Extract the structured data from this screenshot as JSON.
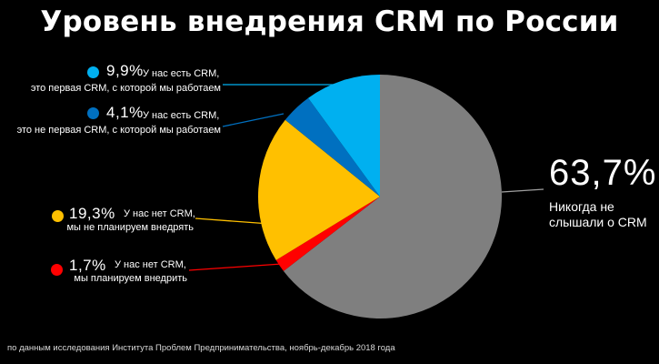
{
  "title": "Уровень внедрения CRM по России",
  "source_note": "по данным исследования Института Проблем Предпринимательства, ноябрь-декабрь 2018 года",
  "chart_data": {
    "type": "pie",
    "title": "Уровень внедрения CRM по России",
    "slices": [
      {
        "id": "never",
        "value": 63.7,
        "value_label": "63,7%",
        "label_line1": "Никогда не",
        "label_line2": "слышали о CRM",
        "color": "#7f7f7f"
      },
      {
        "id": "planning",
        "value": 1.7,
        "value_label": "1,7%",
        "label_line1": "У нас нет CRM,",
        "label_line2": "мы планируем внедрить",
        "color": "#ff0000"
      },
      {
        "id": "not-planning",
        "value": 19.3,
        "value_label": "19,3%",
        "label_line1": "У нас нет CRM,",
        "label_line2": "мы не планируем внедрять",
        "color": "#ffc000"
      },
      {
        "id": "not-first",
        "value": 4.1,
        "value_label": "4,1%",
        "label_line1": "У нас есть CRM,",
        "label_line2": "это не первая CRM, с которой мы работаем",
        "color": "#0070c0"
      },
      {
        "id": "first",
        "value": 9.9,
        "value_label": "9,9%",
        "label_line1": "У нас есть CRM,",
        "label_line2": "это первая CRM, с которой мы работаем",
        "color": "#00b0f0"
      }
    ]
  }
}
